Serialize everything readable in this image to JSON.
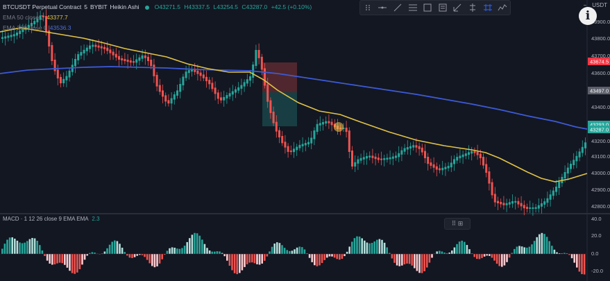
{
  "header": {
    "symbol": "BTCUSDT Perpetual Contract",
    "interval": "5",
    "exchange": "BYBIT",
    "chart_type": "Heikin Ashi",
    "ohlc": {
      "o": "O43271.5",
      "h": "H43337.5",
      "l": "L43254.5",
      "c": "C43287.0",
      "chg": "+42.5 (+0.10%)"
    }
  },
  "indicators": {
    "ema50": {
      "label": "EMA 50 close 0",
      "value": "43377.7",
      "color": "#e2c345"
    },
    "ema200": {
      "label": "EMA 200 close 0",
      "value": "43536.3",
      "color": "#3d5ad6"
    }
  },
  "topright": {
    "currency": "USDT",
    "minus": "−"
  },
  "info_button": "i",
  "price_axis": {
    "ticks": [
      "43900.0",
      "43800.0",
      "43700.0",
      "43600.0",
      "43500.0",
      "43400.0",
      "43300.0",
      "43200.0",
      "43100.0",
      "43000.0",
      "42900.0",
      "42800.0"
    ],
    "badges": [
      {
        "text": "43674.5",
        "color": "#f23645"
      },
      {
        "text": "43497.0",
        "color": "#5d606b"
      },
      {
        "text": "43293.0",
        "color": "#26a69a"
      },
      {
        "text": "43287.0",
        "color": "#26a69a"
      }
    ]
  },
  "macd": {
    "legend": "MACD · 1  12 26 close 9 EMA EMA",
    "value": "2.3",
    "axis": [
      "40.0",
      "20.0",
      "0.0",
      "-20.0"
    ],
    "tools": "⠿ ⊞"
  },
  "colors": {
    "up": "#26a69a",
    "down": "#ef5350",
    "bg": "#131722",
    "ema50": "#e2c345",
    "ema200": "#3d5ad6"
  },
  "toolbar_icons": [
    "drag-handle-icon",
    "horizontal-line-icon",
    "trend-line-icon",
    "fib-retracement-icon",
    "rectangle-icon",
    "text-icon",
    "brush-icon",
    "position-icon",
    "pattern-icon",
    "forecast-icon"
  ]
}
